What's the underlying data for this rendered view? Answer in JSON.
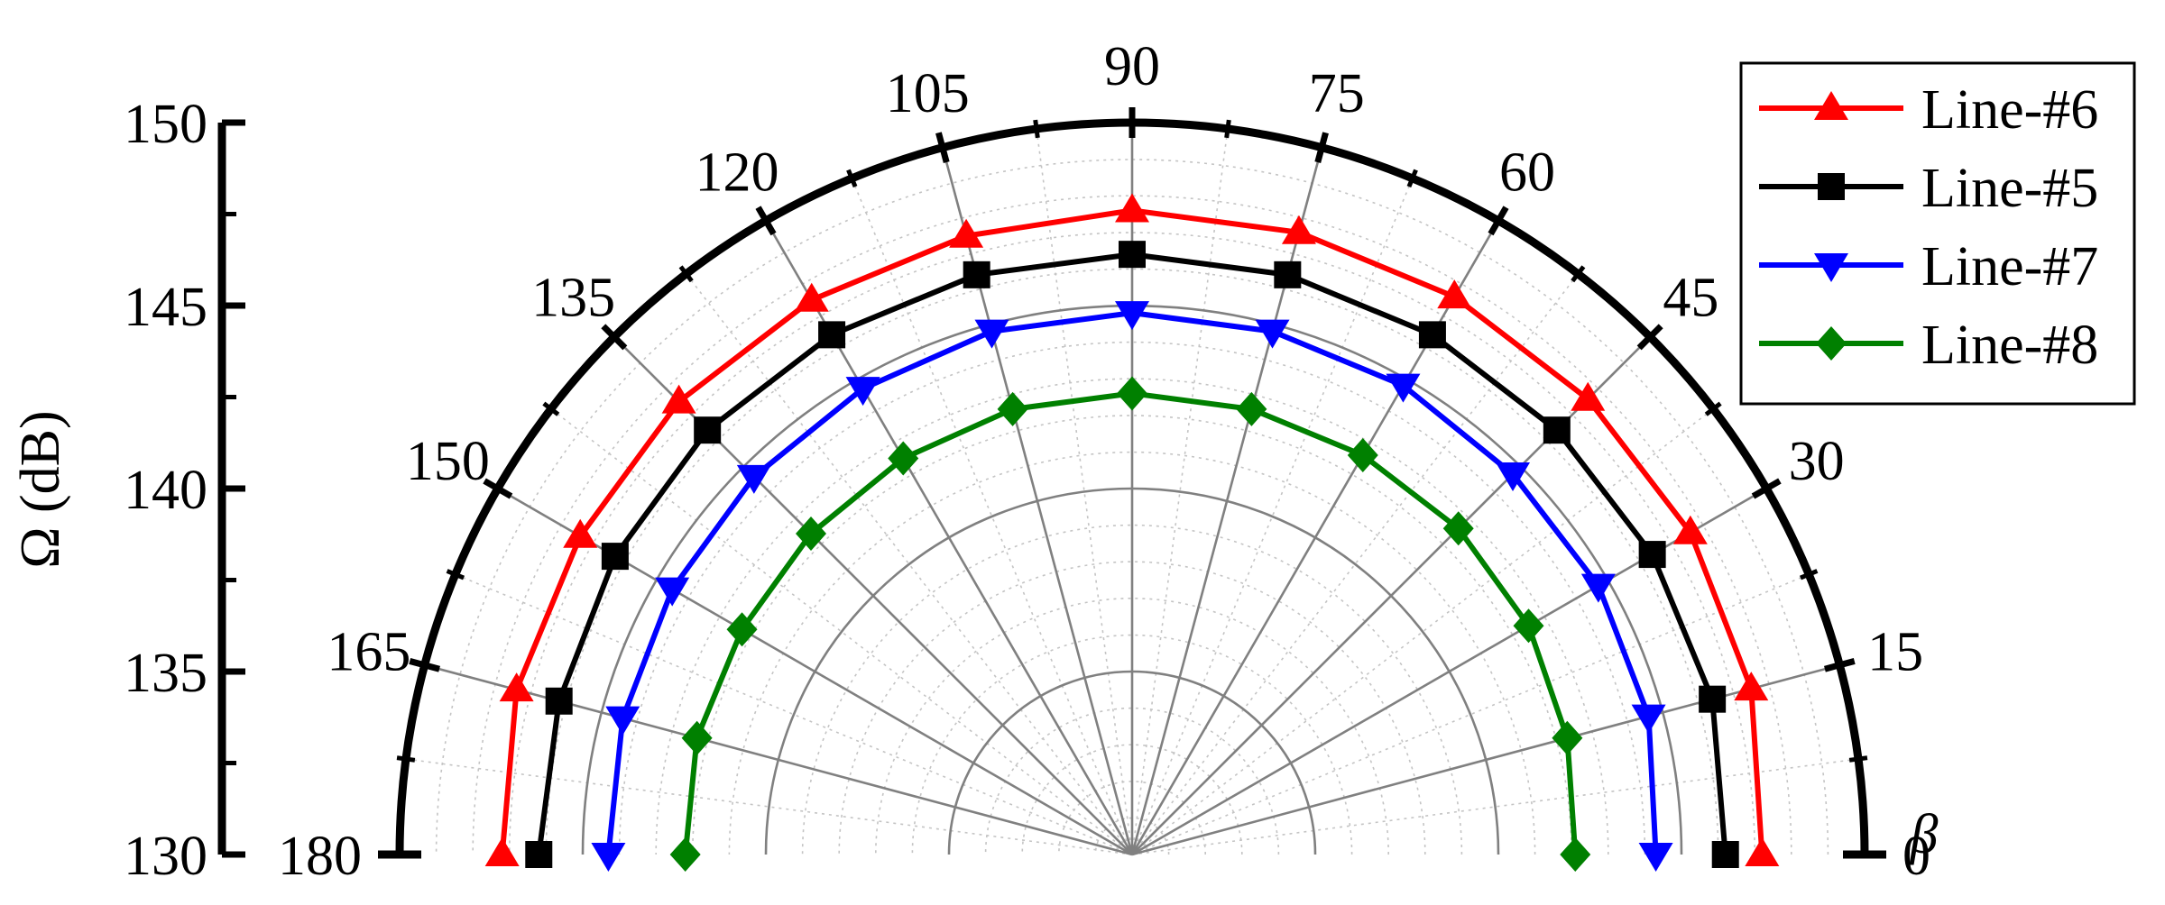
{
  "chart_data": {
    "type": "polar-line",
    "title": "",
    "ylabel": "Ω (dB)",
    "angle_label": "β",
    "radial_range": [
      130,
      150
    ],
    "radial_ticks": [
      "130",
      "135",
      "140",
      "145",
      "150"
    ],
    "angle_range": [
      0,
      180
    ],
    "angle_tick_labels": [
      "0",
      "15",
      "30",
      "45",
      "60",
      "75",
      "90",
      "105",
      "120",
      "135",
      "150",
      "165",
      "180"
    ],
    "grid": true,
    "legend_position": "top-right",
    "series": [
      {
        "name": "Line-#6",
        "color": "#ff0000",
        "marker": "triangle-up",
        "angles": [
          0,
          15,
          30,
          45,
          60,
          75,
          90,
          105,
          120,
          135,
          150,
          165,
          180
        ],
        "values": [
          147.2,
          147.5,
          147.6,
          147.6,
          147.6,
          147.6,
          147.6,
          147.5,
          147.5,
          147.5,
          147.4,
          147.4,
          147.2
        ]
      },
      {
        "name": "Line-#5",
        "color": "#000000",
        "marker": "square",
        "angles": [
          0,
          15,
          30,
          45,
          60,
          75,
          90,
          105,
          120,
          135,
          150,
          165,
          180
        ],
        "values": [
          146.2,
          146.4,
          146.4,
          146.4,
          146.4,
          146.4,
          146.4,
          146.4,
          146.4,
          146.4,
          146.3,
          146.2,
          146.2
        ]
      },
      {
        "name": "Line-#7",
        "color": "#0000ff",
        "marker": "triangle-down",
        "angles": [
          0,
          15,
          30,
          45,
          60,
          75,
          90,
          105,
          120,
          135,
          150,
          165,
          180
        ],
        "values": [
          144.3,
          144.6,
          144.7,
          144.7,
          144.8,
          144.8,
          144.8,
          144.8,
          144.7,
          144.6,
          144.5,
          144.4,
          144.3
        ]
      },
      {
        "name": "Line-#8",
        "color": "#008000",
        "marker": "diamond",
        "angles": [
          0,
          15,
          30,
          45,
          60,
          75,
          90,
          105,
          120,
          135,
          150,
          165,
          180
        ],
        "values": [
          142.1,
          142.3,
          142.5,
          142.6,
          142.6,
          142.6,
          142.6,
          142.6,
          142.5,
          142.4,
          142.3,
          142.3,
          142.2
        ]
      }
    ]
  }
}
